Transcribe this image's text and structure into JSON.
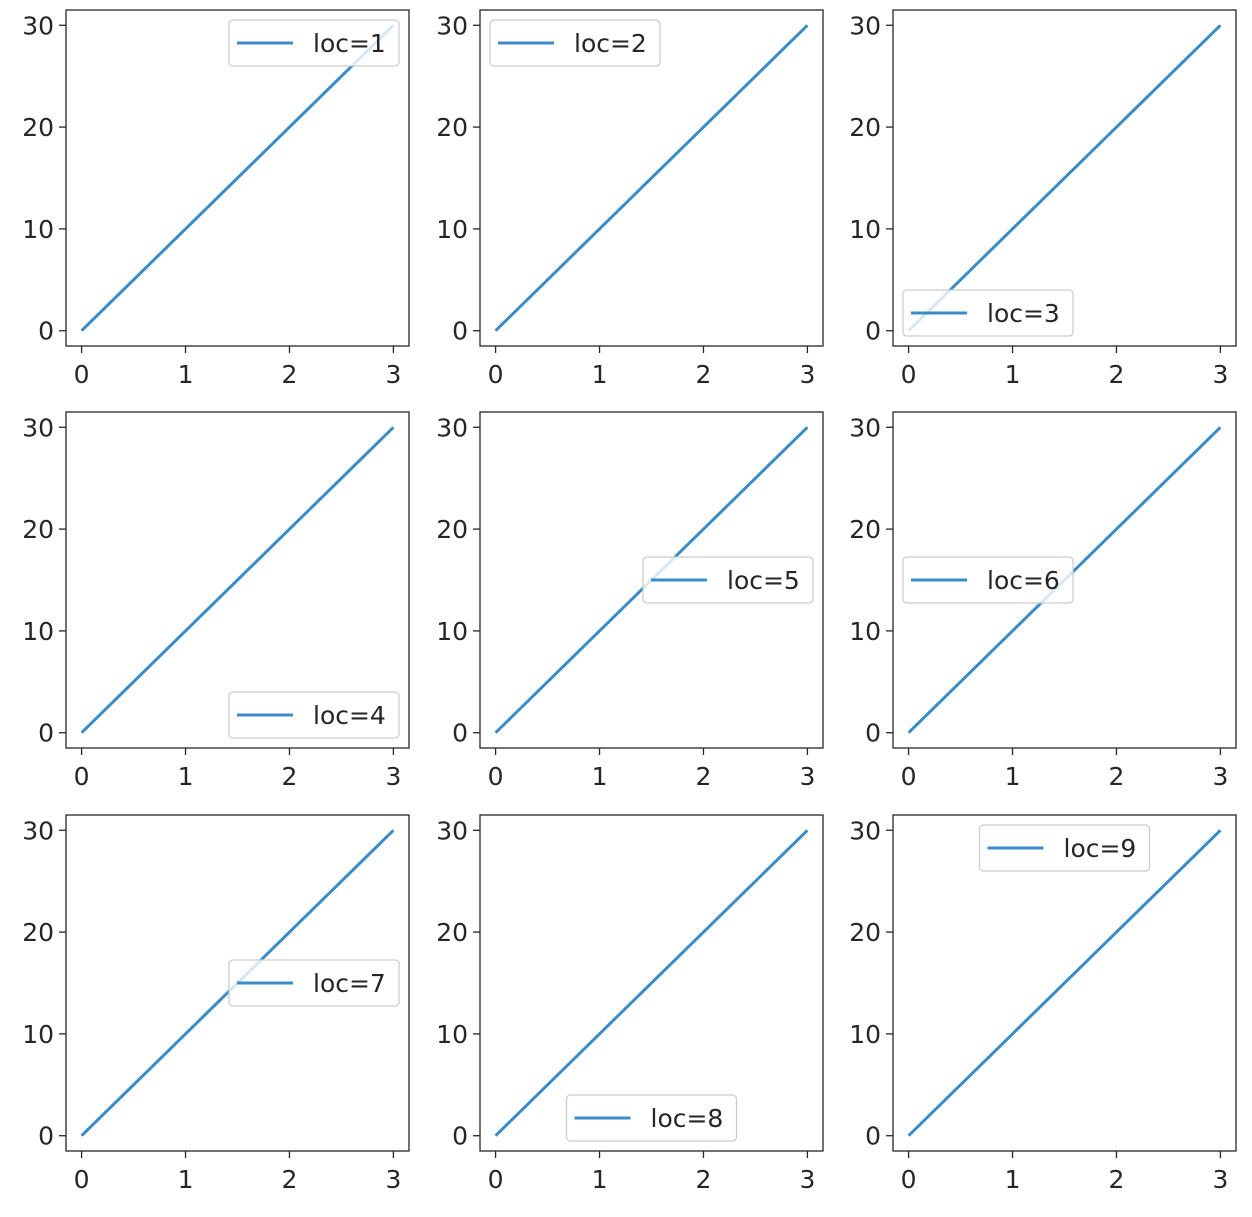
{
  "colors": {
    "line": "#3a8cc8",
    "axes": "#262626",
    "legend_border": "#cccccc",
    "background": "#ffffff"
  },
  "chart_data": [
    {
      "type": "line",
      "x": [
        0,
        1,
        2,
        3
      ],
      "series": [
        {
          "name": "loc=1",
          "values": [
            0,
            10,
            20,
            30
          ]
        }
      ],
      "xticks": [
        0,
        1,
        2,
        3
      ],
      "yticks": [
        0,
        10,
        20,
        30
      ],
      "xlim": [
        -0.15,
        3.15
      ],
      "ylim": [
        -1.5,
        31.5
      ],
      "legend": "upper-right",
      "grid": false
    },
    {
      "type": "line",
      "x": [
        0,
        1,
        2,
        3
      ],
      "series": [
        {
          "name": "loc=2",
          "values": [
            0,
            10,
            20,
            30
          ]
        }
      ],
      "xticks": [
        0,
        1,
        2,
        3
      ],
      "yticks": [
        0,
        10,
        20,
        30
      ],
      "xlim": [
        -0.15,
        3.15
      ],
      "ylim": [
        -1.5,
        31.5
      ],
      "legend": "upper-left",
      "grid": false
    },
    {
      "type": "line",
      "x": [
        0,
        1,
        2,
        3
      ],
      "series": [
        {
          "name": "loc=3",
          "values": [
            0,
            10,
            20,
            30
          ]
        }
      ],
      "xticks": [
        0,
        1,
        2,
        3
      ],
      "yticks": [
        0,
        10,
        20,
        30
      ],
      "xlim": [
        -0.15,
        3.15
      ],
      "ylim": [
        -1.5,
        31.5
      ],
      "legend": "lower-left",
      "grid": false
    },
    {
      "type": "line",
      "x": [
        0,
        1,
        2,
        3
      ],
      "series": [
        {
          "name": "loc=4",
          "values": [
            0,
            10,
            20,
            30
          ]
        }
      ],
      "xticks": [
        0,
        1,
        2,
        3
      ],
      "yticks": [
        0,
        10,
        20,
        30
      ],
      "xlim": [
        -0.15,
        3.15
      ],
      "ylim": [
        -1.5,
        31.5
      ],
      "legend": "lower-right",
      "grid": false
    },
    {
      "type": "line",
      "x": [
        0,
        1,
        2,
        3
      ],
      "series": [
        {
          "name": "loc=5",
          "values": [
            0,
            10,
            20,
            30
          ]
        }
      ],
      "xticks": [
        0,
        1,
        2,
        3
      ],
      "yticks": [
        0,
        10,
        20,
        30
      ],
      "xlim": [
        -0.15,
        3.15
      ],
      "ylim": [
        -1.5,
        31.5
      ],
      "legend": "right",
      "grid": false
    },
    {
      "type": "line",
      "x": [
        0,
        1,
        2,
        3
      ],
      "series": [
        {
          "name": "loc=6",
          "values": [
            0,
            10,
            20,
            30
          ]
        }
      ],
      "xticks": [
        0,
        1,
        2,
        3
      ],
      "yticks": [
        0,
        10,
        20,
        30
      ],
      "xlim": [
        -0.15,
        3.15
      ],
      "ylim": [
        -1.5,
        31.5
      ],
      "legend": "center-left",
      "grid": false
    },
    {
      "type": "line",
      "x": [
        0,
        1,
        2,
        3
      ],
      "series": [
        {
          "name": "loc=7",
          "values": [
            0,
            10,
            20,
            30
          ]
        }
      ],
      "xticks": [
        0,
        1,
        2,
        3
      ],
      "yticks": [
        0,
        10,
        20,
        30
      ],
      "xlim": [
        -0.15,
        3.15
      ],
      "ylim": [
        -1.5,
        31.5
      ],
      "legend": "center-right",
      "grid": false
    },
    {
      "type": "line",
      "x": [
        0,
        1,
        2,
        3
      ],
      "series": [
        {
          "name": "loc=8",
          "values": [
            0,
            10,
            20,
            30
          ]
        }
      ],
      "xticks": [
        0,
        1,
        2,
        3
      ],
      "yticks": [
        0,
        10,
        20,
        30
      ],
      "xlim": [
        -0.15,
        3.15
      ],
      "ylim": [
        -1.5,
        31.5
      ],
      "legend": "lower-center",
      "grid": false
    },
    {
      "type": "line",
      "x": [
        0,
        1,
        2,
        3
      ],
      "series": [
        {
          "name": "loc=9",
          "values": [
            0,
            10,
            20,
            30
          ]
        }
      ],
      "xticks": [
        0,
        1,
        2,
        3
      ],
      "yticks": [
        0,
        10,
        20,
        30
      ],
      "xlim": [
        -0.15,
        3.15
      ],
      "ylim": [
        -1.5,
        31.5
      ],
      "legend": "upper-center",
      "grid": false
    }
  ]
}
